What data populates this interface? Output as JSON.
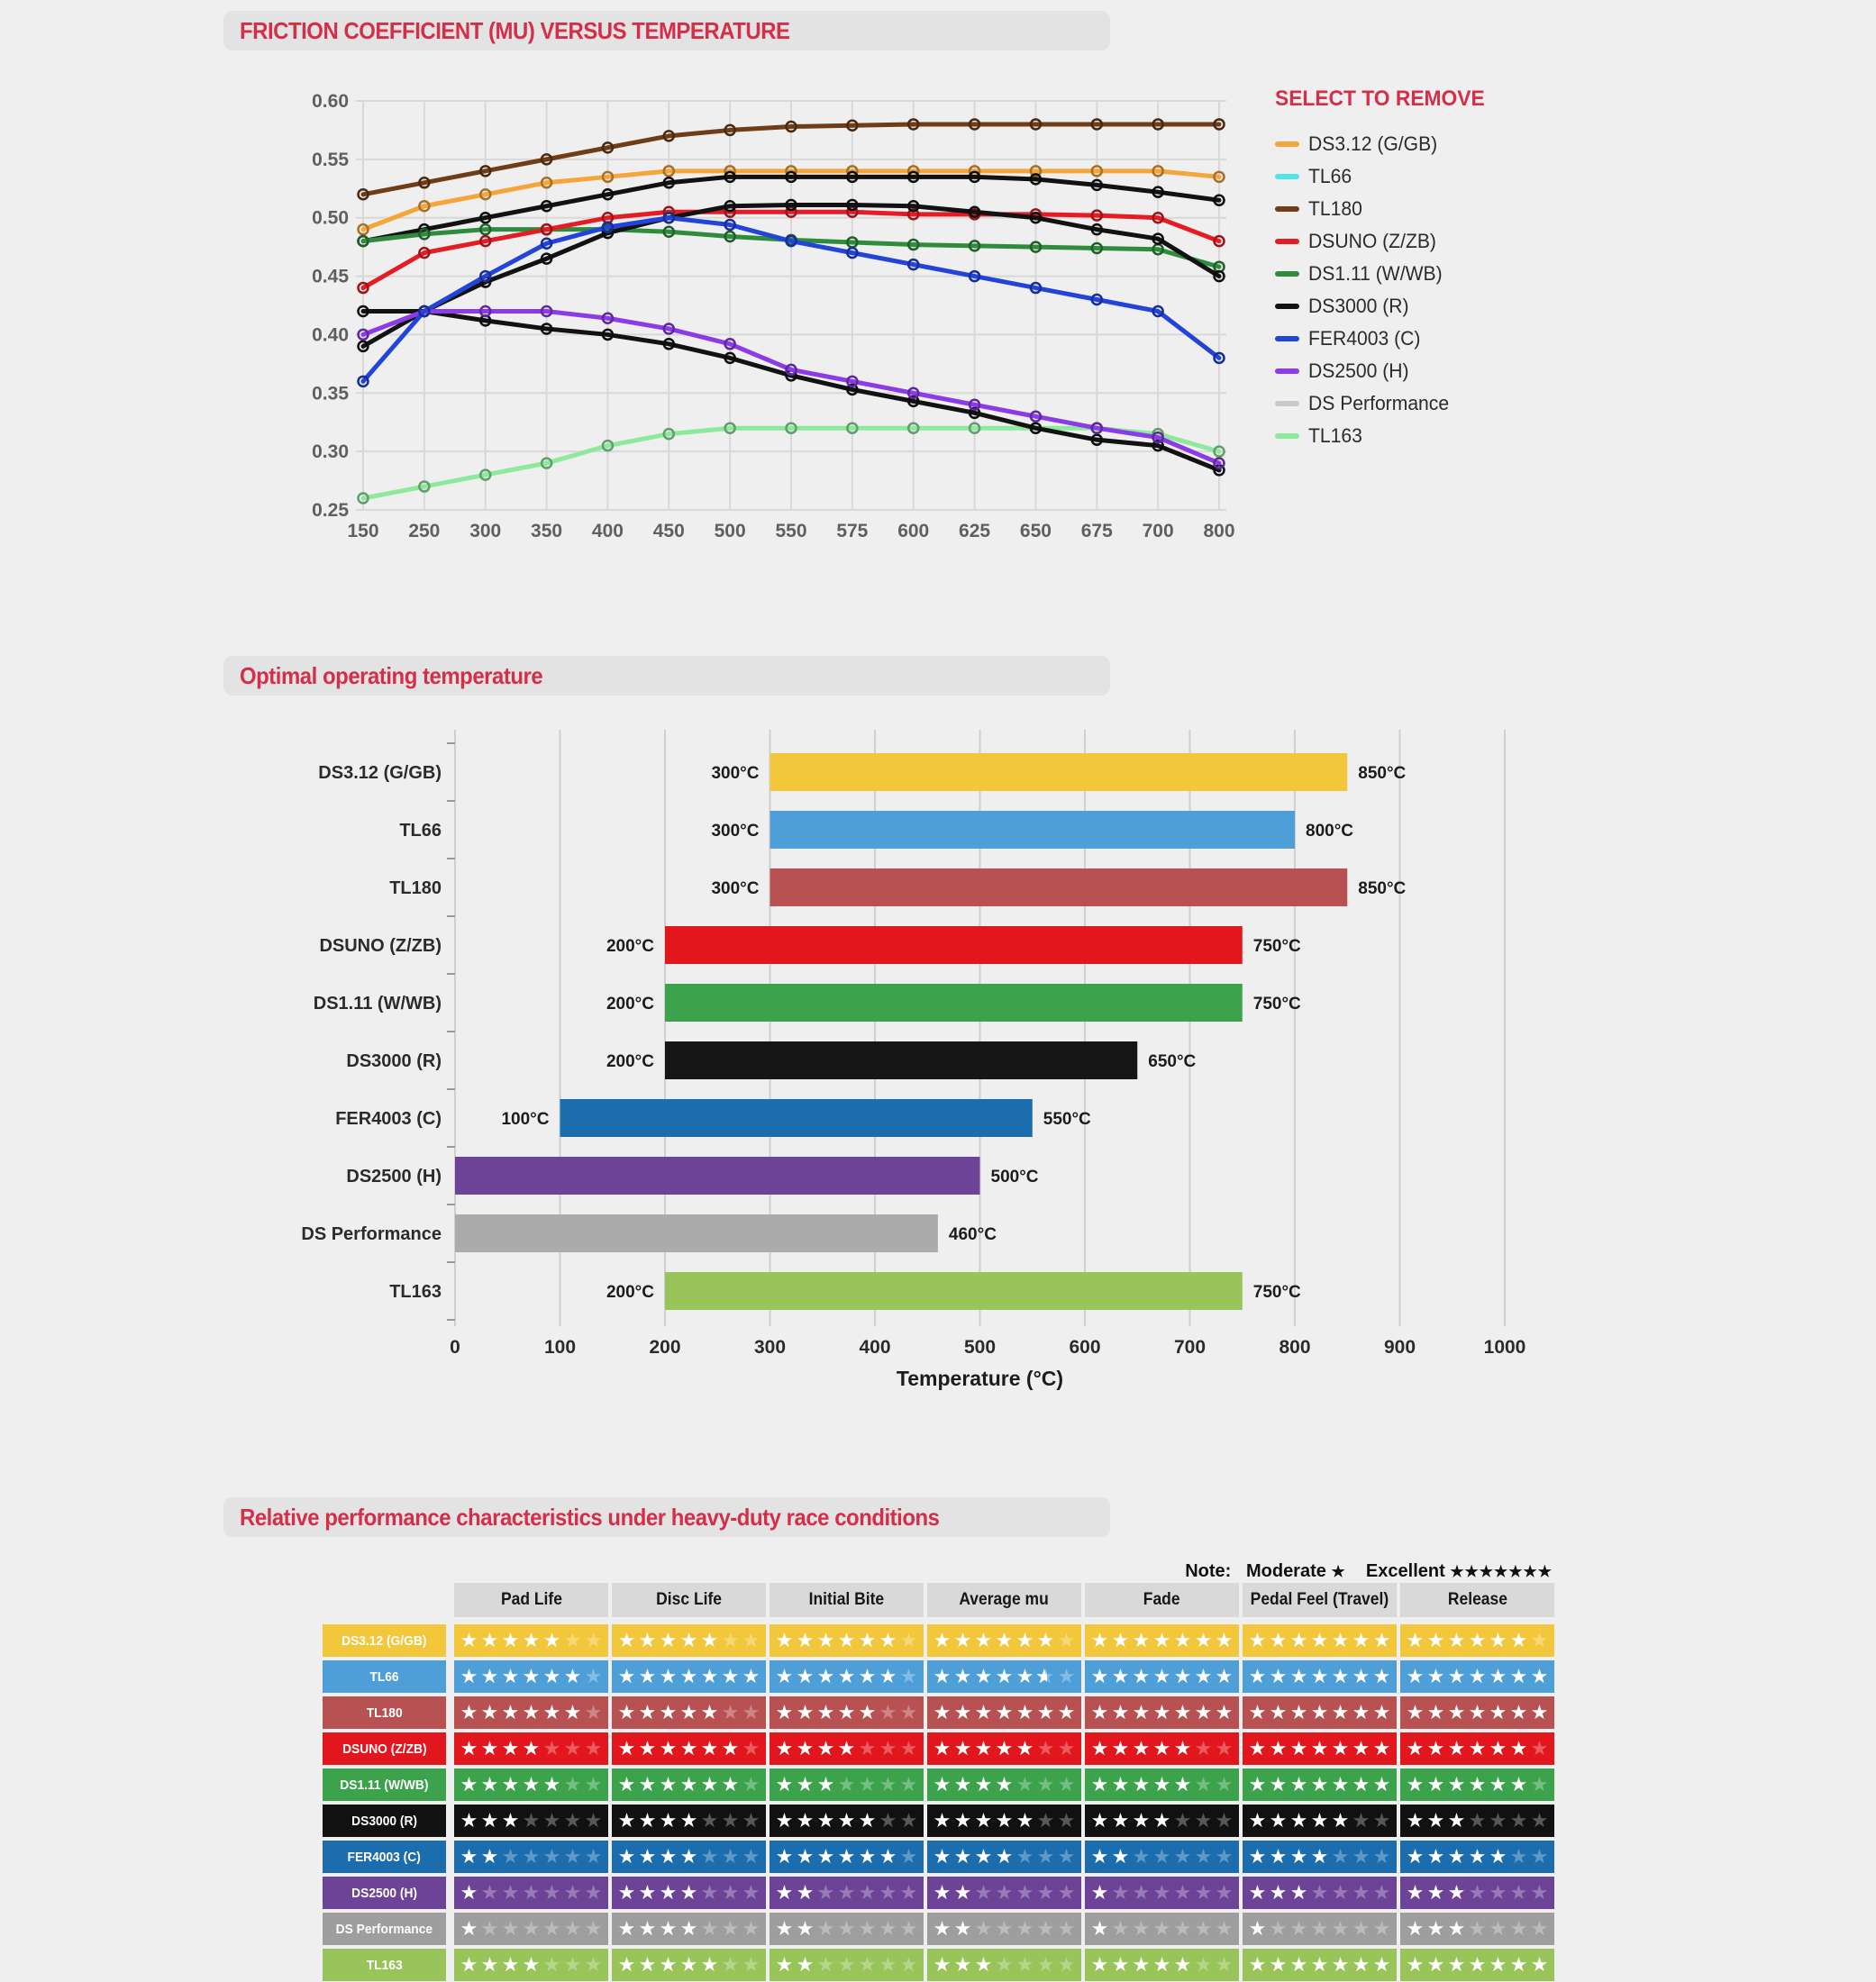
{
  "chart_data": [
    {
      "type": "line",
      "title": "FRICTION COEFFICIENT (MU) VERSUS TEMPERATURE",
      "legend_title": "SELECT TO REMOVE",
      "legend_position": "right",
      "grid": true,
      "x": [
        150,
        250,
        300,
        350,
        400,
        450,
        500,
        550,
        575,
        600,
        625,
        650,
        675,
        700,
        800
      ],
      "ylim": [
        0.25,
        0.6
      ],
      "y_step": 0.05,
      "y_tick_labels": [
        "0.25",
        "0.30",
        "0.35",
        "0.40",
        "0.45",
        "0.50",
        "0.55",
        "0.60"
      ],
      "draw_order": [
        0,
        2,
        1,
        4,
        3,
        5,
        9,
        8,
        7,
        6
      ],
      "series": [
        {
          "name": "DS3.12 (G/GB)",
          "legend_color": "#F4A63A",
          "line_color": "#F4A63A",
          "values": [
            0.49,
            0.51,
            0.52,
            0.53,
            0.535,
            0.54,
            0.54,
            0.54,
            0.54,
            0.54,
            0.54,
            0.54,
            0.54,
            0.54,
            0.535
          ]
        },
        {
          "name": "TL66",
          "legend_color": "#50E3EC",
          "line_color": "#121212",
          "values": [
            0.48,
            0.49,
            0.5,
            0.51,
            0.52,
            0.53,
            0.535,
            0.535,
            0.535,
            0.535,
            0.535,
            0.533,
            0.528,
            0.522,
            0.515
          ]
        },
        {
          "name": "TL180",
          "legend_color": "#6F3D17",
          "line_color": "#6F3D17",
          "values": [
            0.52,
            0.53,
            0.54,
            0.55,
            0.56,
            0.57,
            0.575,
            0.578,
            0.579,
            0.58,
            0.58,
            0.58,
            0.58,
            0.58,
            0.58
          ]
        },
        {
          "name": "DSUNO (Z/ZB)",
          "legend_color": "#E41D25",
          "line_color": "#E41D25",
          "values": [
            0.44,
            0.47,
            0.48,
            0.49,
            0.5,
            0.505,
            0.505,
            0.505,
            0.505,
            0.503,
            0.503,
            0.503,
            0.502,
            0.5,
            0.48
          ]
        },
        {
          "name": "DS1.11 (W/WB)",
          "legend_color": "#2F8C3C",
          "line_color": "#2F8C3C",
          "values": [
            0.48,
            0.486,
            0.49,
            0.49,
            0.49,
            0.488,
            0.484,
            0.481,
            0.479,
            0.477,
            0.476,
            0.475,
            0.474,
            0.473,
            0.458
          ]
        },
        {
          "name": "DS3000 (R)",
          "legend_color": "#121212",
          "line_color": "#121212",
          "values": [
            0.39,
            0.42,
            0.445,
            0.465,
            0.487,
            0.5,
            0.51,
            0.511,
            0.511,
            0.51,
            0.505,
            0.5,
            0.49,
            0.482,
            0.45
          ]
        },
        {
          "name": "FER4003 (C)",
          "legend_color": "#2244D9",
          "line_color": "#2244D9",
          "values": [
            0.36,
            0.42,
            0.45,
            0.478,
            0.492,
            0.5,
            0.494,
            0.48,
            0.47,
            0.46,
            0.45,
            0.44,
            0.43,
            0.42,
            0.38
          ]
        },
        {
          "name": "DS2500 (H)",
          "legend_color": "#8B3BE8",
          "line_color": "#8B3BE8",
          "values": [
            0.4,
            0.42,
            0.42,
            0.42,
            0.414,
            0.405,
            0.392,
            0.37,
            0.36,
            0.35,
            0.34,
            0.33,
            0.32,
            0.312,
            0.29
          ]
        },
        {
          "name": "DS Performance",
          "legend_color": "#C9C9C9",
          "line_color": "#121212",
          "values": [
            0.42,
            0.42,
            0.412,
            0.405,
            0.4,
            0.392,
            0.38,
            0.365,
            0.353,
            0.343,
            0.333,
            0.32,
            0.31,
            0.305,
            0.284
          ]
        },
        {
          "name": "TL163",
          "legend_color": "#8DE99C",
          "line_color": "#8DE99C",
          "values": [
            0.26,
            0.27,
            0.28,
            0.29,
            0.305,
            0.315,
            0.32,
            0.32,
            0.32,
            0.32,
            0.32,
            0.32,
            0.32,
            0.315,
            0.3
          ]
        }
      ]
    },
    {
      "type": "bar",
      "subtype": "horizontal-range",
      "title": "Optimal operating temperature",
      "xlabel": "Temperature (°C)",
      "xlim": [
        0,
        1000
      ],
      "x_step": 100,
      "x_tick_labels": [
        "0",
        "100",
        "200",
        "300",
        "400",
        "500",
        "600",
        "700",
        "800",
        "900",
        "1000"
      ],
      "grid": true,
      "bars": [
        {
          "name": "DS3.12 (G/GB)",
          "color": "#F3C73B",
          "range": [
            300,
            850
          ],
          "min_label": "300°C",
          "max_label": "850°C"
        },
        {
          "name": "TL66",
          "color": "#4E9FD8",
          "range": [
            300,
            800
          ],
          "min_label": "300°C",
          "max_label": "800°C"
        },
        {
          "name": "TL180",
          "color": "#B85252",
          "range": [
            300,
            850
          ],
          "min_label": "300°C",
          "max_label": "850°C"
        },
        {
          "name": "DSUNO (Z/ZB)",
          "color": "#E2161D",
          "range": [
            200,
            750
          ],
          "min_label": "200°C",
          "max_label": "750°C"
        },
        {
          "name": "DS1.11 (W/WB)",
          "color": "#3DA24C",
          "range": [
            200,
            750
          ],
          "min_label": "200°C",
          "max_label": "750°C"
        },
        {
          "name": "DS3000 (R)",
          "color": "#161616",
          "range": [
            200,
            650
          ],
          "min_label": "200°C",
          "max_label": "650°C"
        },
        {
          "name": "FER4003 (C)",
          "color": "#1B6DAD",
          "range": [
            100,
            550
          ],
          "min_label": "100°C",
          "max_label": "550°C"
        },
        {
          "name": "DS2500 (H)",
          "color": "#6C4396",
          "range": [
            0,
            500
          ],
          "min_label": "",
          "max_label": "500°C"
        },
        {
          "name": "DS Performance",
          "color": "#ABABAB",
          "range": [
            0,
            460
          ],
          "min_label": "",
          "max_label": "460°C"
        },
        {
          "name": "TL163",
          "color": "#98C45A",
          "range": [
            200,
            750
          ],
          "min_label": "200°C",
          "max_label": "750°C"
        }
      ]
    },
    {
      "type": "table",
      "title": "Relative performance characteristics under heavy-duty race conditions",
      "note_label": "Note:",
      "note_moderate_label": "Moderate",
      "note_moderate_stars": "★",
      "note_excellent_label": "Excellent",
      "note_excellent_stars": "★★★★★★★",
      "max_stars": 7,
      "columns": [
        "Pad Life",
        "Disc Life",
        "Initial Bite",
        "Average mu",
        "Fade",
        "Pedal Feel (Travel)",
        "Release"
      ],
      "rows": [
        {
          "name": "DS3.12 (G/GB)",
          "color": "#F3C73B",
          "ratings": [
            5,
            5,
            6,
            6,
            7,
            7,
            6
          ]
        },
        {
          "name": "TL66",
          "color": "#4E9FD8",
          "ratings": [
            6,
            7,
            6,
            5.5,
            7,
            7,
            7
          ]
        },
        {
          "name": "TL180",
          "color": "#B85252",
          "ratings": [
            6,
            5,
            5,
            7,
            7,
            7,
            7
          ]
        },
        {
          "name": "DSUNO (Z/ZB)",
          "color": "#E2161D",
          "ratings": [
            4,
            6,
            4,
            5,
            5,
            7,
            6
          ]
        },
        {
          "name": "DS1.11 (W/WB)",
          "color": "#3DA24C",
          "ratings": [
            5,
            6,
            3,
            4,
            5,
            7,
            6
          ]
        },
        {
          "name": "DS3000 (R)",
          "color": "#111111",
          "ratings": [
            3,
            4,
            5,
            5,
            4,
            5,
            3
          ]
        },
        {
          "name": "FER4003 (C)",
          "color": "#1B6DAD",
          "ratings": [
            2,
            4,
            6,
            4,
            2,
            4,
            5
          ]
        },
        {
          "name": "DS2500 (H)",
          "color": "#6C4396",
          "ratings": [
            1,
            4,
            2,
            2,
            1,
            3,
            3
          ]
        },
        {
          "name": "DS Performance",
          "color": "#9E9E9E",
          "ratings": [
            1,
            4,
            2,
            2,
            1,
            1,
            3
          ]
        },
        {
          "name": "TL163",
          "color": "#98C45A",
          "ratings": [
            4,
            5,
            2,
            3,
            5,
            7,
            7
          ]
        }
      ]
    }
  ],
  "theme": {
    "page_bg": "#efefef",
    "header_bg": "#e3e3e3",
    "accent_red": "#d42e48",
    "grid_color": "#d8d8d8",
    "tick_color": "#5f5f5f",
    "bar_label_color": "#1c1c1c",
    "table_header_bg": "#d9d9d9"
  }
}
